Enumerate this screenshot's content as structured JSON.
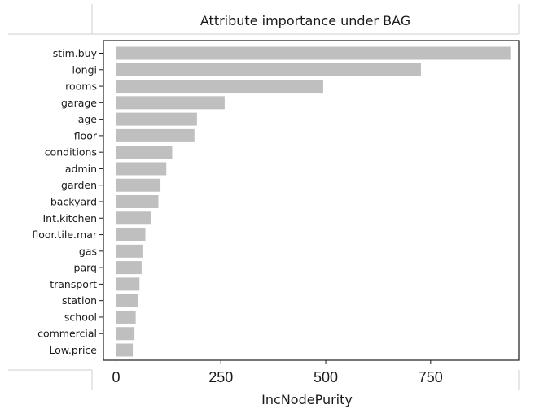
{
  "chart_data": {
    "type": "bar",
    "orientation": "horizontal",
    "title": "Attribute importance under BAG",
    "xlabel": "IncNodePurity",
    "ylabel": "",
    "categories": [
      "stim.buy",
      "longi",
      "rooms",
      "garage",
      "age",
      "floor",
      "conditions",
      "admin",
      "garden",
      "backyard",
      "Int.kitchen",
      "floor.tile.mar",
      "gas",
      "parq",
      "transport",
      "station",
      "school",
      "commercial",
      "Low.price"
    ],
    "values": [
      940,
      727,
      494,
      259,
      193,
      187,
      134,
      120,
      106,
      101,
      84,
      70,
      63,
      61,
      56,
      53,
      47,
      44,
      40
    ],
    "xlim": [
      -30,
      960
    ],
    "xticks": [
      0,
      250,
      500,
      750
    ],
    "xtick_labels": [
      "0",
      "250",
      "500",
      "750"
    ],
    "bar_color": "#bfbfbf",
    "grid": false,
    "legend": "none"
  }
}
